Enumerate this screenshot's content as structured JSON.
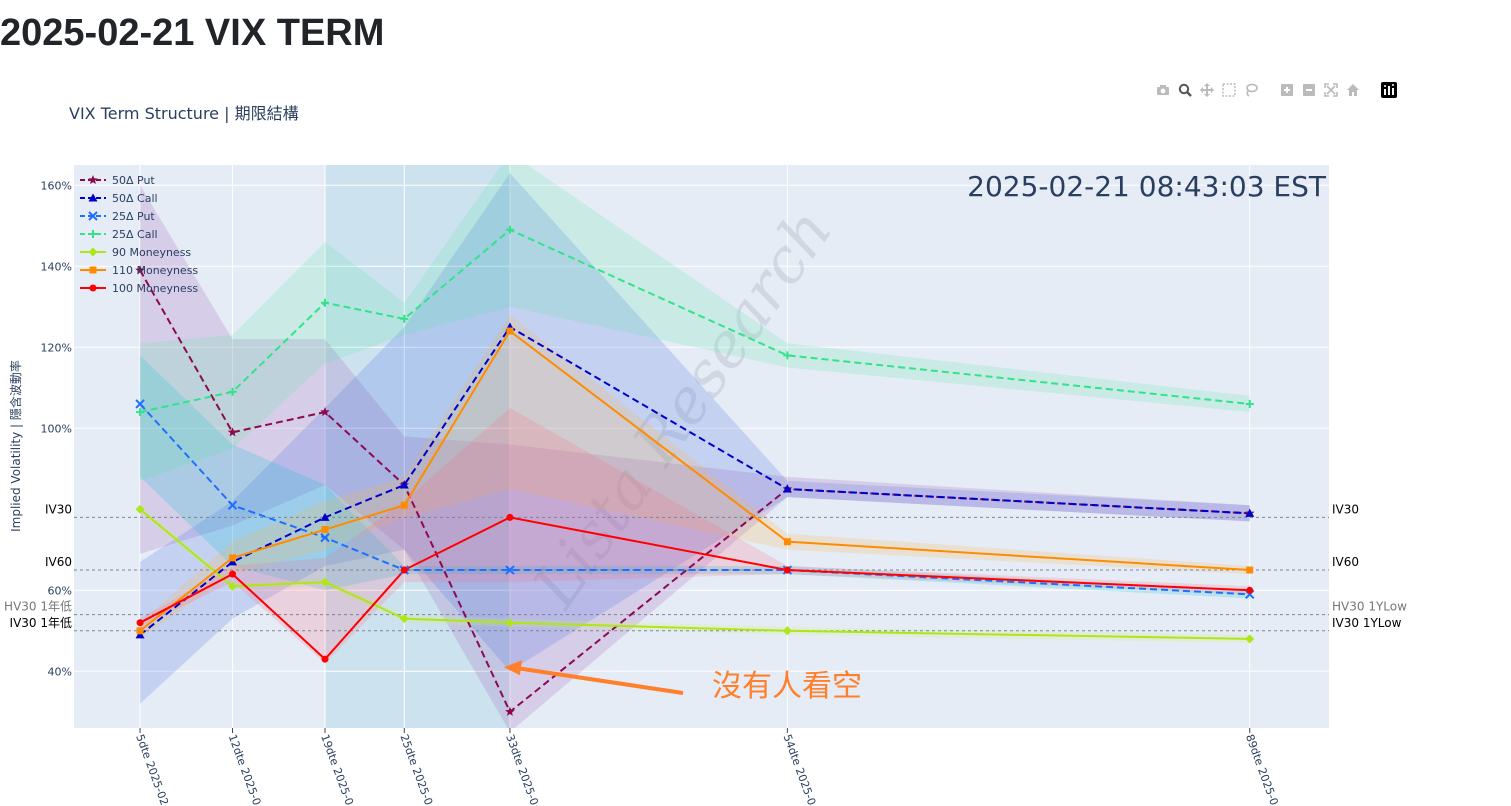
{
  "page": {
    "title": "2025-02-21 VIX TERM"
  },
  "modebar": {
    "buttons": [
      "camera-icon",
      "zoom-icon",
      "pan-icon",
      "box-select-icon",
      "lasso-icon",
      "zoom-in-icon",
      "zoom-out-icon",
      "autoscale-icon",
      "reset-axes-icon",
      "plotly-logo-icon"
    ]
  },
  "chart_data": {
    "type": "line",
    "title": "VIX Term Structure | 期限結構",
    "timestamp": "2025-02-21 08:43:03 EST",
    "ylabel": "Implied Volatility | 隱含波動率",
    "ylim": [
      26,
      165
    ],
    "yticks": [
      {
        "value": 40,
        "label": "40%"
      },
      {
        "value": 60,
        "label": "60%"
      },
      {
        "value": 100,
        "label": "100%"
      },
      {
        "value": 120,
        "label": "120%"
      },
      {
        "value": 140,
        "label": "140%"
      },
      {
        "value": 160,
        "label": "160%"
      }
    ],
    "x": [
      5,
      12,
      19,
      25,
      33,
      54,
      89
    ],
    "x_tick_labels": [
      "5dte 2025-02",
      "12dte 2025-0",
      "19dte 2025-0",
      "25dte 2025-0",
      "33dte 2025-0",
      "54dte 2025-0",
      "89dte 2025-0"
    ],
    "x_range": [
      0,
      95
    ],
    "highlight_band": [
      19,
      33
    ],
    "series": [
      {
        "name": "50Δ Put",
        "color": "#8b0a50",
        "dash": "dash",
        "marker": "star",
        "values": [
          139,
          99,
          104,
          86,
          30,
          85,
          79
        ],
        "band": {
          "color": "#9b59b6",
          "upper": [
            160,
            122,
            122,
            98,
            96,
            88,
            81
          ],
          "lower": [
            69,
            76,
            86,
            70,
            25,
            83,
            77
          ]
        }
      },
      {
        "name": "50Δ Call",
        "color": "#0000cd",
        "dash": "dash",
        "marker": "triangle-up",
        "values": [
          49,
          67,
          78,
          86,
          125,
          85,
          79
        ],
        "band": {
          "color": "#4169e1",
          "upper": [
            67,
            82,
            105,
            125,
            163,
            87,
            81
          ],
          "lower": [
            32,
            53,
            66,
            70,
            40,
            83,
            77
          ]
        }
      },
      {
        "name": "25Δ Put",
        "color": "#1e6fff",
        "dash": "dash",
        "marker": "x",
        "values": [
          106,
          81,
          73,
          65,
          65,
          65,
          59
        ],
        "band": {
          "color": "#00bcd4",
          "upper": [
            118,
            96,
            86,
            66,
            66,
            66,
            60
          ],
          "lower": [
            88,
            66,
            60,
            64,
            64,
            64,
            58
          ]
        }
      },
      {
        "name": "25Δ Call",
        "color": "#33e38a",
        "dash": "dash",
        "marker": "cross",
        "values": [
          104,
          109,
          131,
          127,
          149,
          118,
          106
        ],
        "band": {
          "color": "#5ee8a8",
          "upper": [
            121,
            123,
            146,
            131,
            168,
            121,
            108
          ],
          "lower": [
            87,
            95,
            116,
            123,
            130,
            115,
            104
          ]
        }
      },
      {
        "name": "90 Moneyness",
        "color": "#aee61a",
        "dash": "solid",
        "marker": "diamond",
        "values": [
          80,
          61,
          62,
          53,
          52,
          50,
          48
        ],
        "band": {
          "color": "#d6ee6a",
          "upper": [
            81,
            62,
            63,
            54,
            53,
            51,
            49
          ],
          "lower": [
            79,
            60,
            61,
            52,
            51,
            49,
            47
          ]
        }
      },
      {
        "name": "110 Moneyness",
        "color": "#ff8c00",
        "dash": "solid",
        "marker": "square",
        "values": [
          50,
          68,
          75,
          81,
          124,
          72,
          65
        ],
        "band": {
          "color": "#ffb347",
          "upper": [
            52,
            72,
            82,
            88,
            128,
            74,
            66
          ],
          "lower": [
            48,
            64,
            70,
            78,
            85,
            70,
            64
          ]
        }
      },
      {
        "name": "100 Moneyness",
        "color": "#ff0000",
        "dash": "solid",
        "marker": "circle",
        "values": [
          52,
          64,
          43,
          65,
          78,
          65,
          60
        ],
        "band": {
          "color": "#ff6b81",
          "upper": [
            53,
            66,
            68,
            82,
            105,
            66,
            61
          ],
          "lower": [
            51,
            62,
            42,
            62,
            62,
            64,
            59
          ]
        }
      }
    ],
    "reference_lines": [
      {
        "name": "IV30",
        "value": 78,
        "left_label": "IV30",
        "right_label": "IV30",
        "color": "#000000"
      },
      {
        "name": "IV60",
        "value": 65,
        "left_label": "IV60",
        "right_label": "IV60",
        "color": "#000000"
      },
      {
        "name": "HV30 1YLow",
        "value": 54,
        "left_label": "HV30 1年低",
        "right_label": "HV30 1YLow",
        "color": "#777777"
      },
      {
        "name": "IV30 1YLow",
        "value": 50,
        "left_label": "IV30 1年低",
        "right_label": "IV30 1YLow",
        "color": "#000000"
      }
    ],
    "annotation": {
      "text": "沒有人看空",
      "color": "#ff7f2a",
      "arrow_to": {
        "x": 33,
        "y": 41
      }
    },
    "legend_position": "top-left",
    "grid": true
  }
}
